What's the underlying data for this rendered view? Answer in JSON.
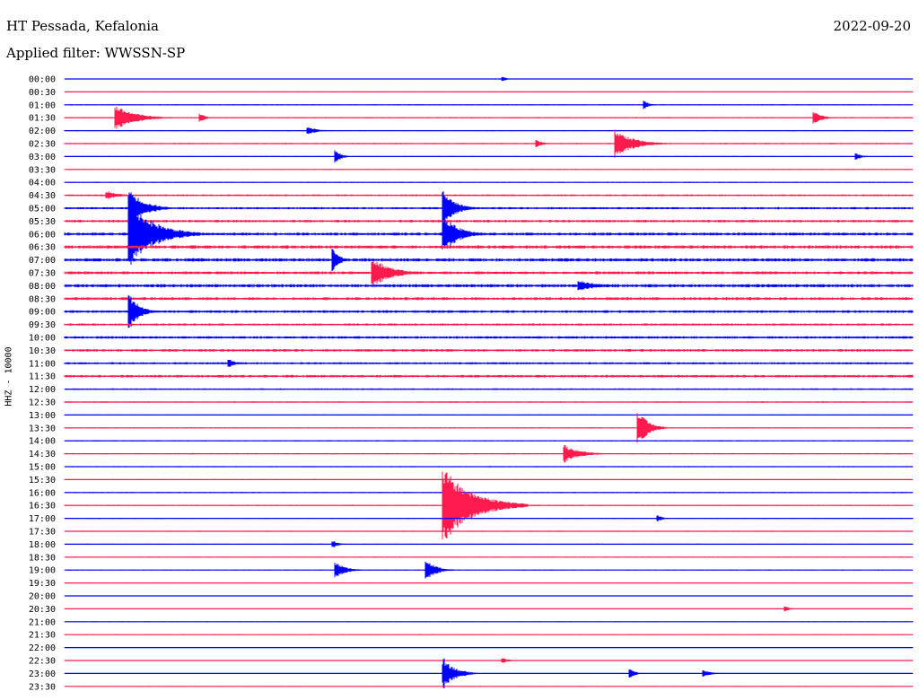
{
  "header": {
    "station": "HT Pessada, Kefalonia",
    "date": "2022-09-20",
    "filter": "Applied filter: WWSSN-SP"
  },
  "channel_label": "HHZ - 10000",
  "colors": {
    "even_row": "#0000ff",
    "odd_row": "#ff1a4d"
  },
  "chart_data": {
    "type": "line",
    "title": "HT Pessada, Kefalonia",
    "subtitle": "Applied filter: WWSSN-SP",
    "ylabel": "HHZ - 10000",
    "xlabel": "",
    "grid": false,
    "x_range_minutes": [
      0,
      30
    ],
    "rows": [
      "00:00",
      "00:30",
      "01:00",
      "01:30",
      "02:00",
      "02:30",
      "03:00",
      "03:30",
      "04:00",
      "04:30",
      "05:00",
      "05:30",
      "06:00",
      "06:30",
      "07:00",
      "07:30",
      "08:00",
      "08:30",
      "09:00",
      "09:30",
      "10:00",
      "10:30",
      "11:00",
      "11:30",
      "12:00",
      "12:30",
      "13:00",
      "13:30",
      "14:00",
      "14:30",
      "15:00",
      "15:30",
      "16:00",
      "16:30",
      "17:00",
      "17:30",
      "18:00",
      "18:30",
      "19:00",
      "19:30",
      "20:00",
      "20:30",
      "21:00",
      "21:30",
      "22:00",
      "22:30",
      "23:00",
      "23:30"
    ],
    "noise_levels": [
      0.4,
      0.5,
      0.6,
      0.7,
      0.6,
      0.7,
      0.6,
      0.5,
      0.6,
      1.0,
      1.2,
      1.4,
      1.6,
      1.8,
      1.8,
      1.6,
      1.8,
      1.6,
      1.4,
      1.2,
      1.4,
      1.4,
      1.2,
      1.4,
      0.9,
      0.7,
      0.6,
      0.6,
      0.7,
      0.7,
      0.6,
      0.6,
      0.7,
      0.7,
      0.6,
      0.6,
      0.6,
      0.5,
      0.5,
      0.5,
      0.4,
      0.4,
      0.4,
      0.4,
      0.4,
      0.4,
      0.4,
      0.4
    ],
    "events": [
      {
        "row": "00:00",
        "minute": 15.5,
        "amplitude": 3,
        "duration_min": 0.4
      },
      {
        "row": "01:00",
        "minute": 20.5,
        "amplitude": 5,
        "duration_min": 0.5
      },
      {
        "row": "01:30",
        "minute": 1.8,
        "amplitude": 14,
        "duration_min": 2.0
      },
      {
        "row": "01:30",
        "minute": 4.8,
        "amplitude": 5,
        "duration_min": 0.6
      },
      {
        "row": "01:30",
        "minute": 26.5,
        "amplitude": 8,
        "duration_min": 0.8
      },
      {
        "row": "02:00",
        "minute": 8.6,
        "amplitude": 5,
        "duration_min": 1.0
      },
      {
        "row": "02:30",
        "minute": 19.5,
        "amplitude": 16,
        "duration_min": 1.8
      },
      {
        "row": "02:30",
        "minute": 16.7,
        "amplitude": 5,
        "duration_min": 0.6
      },
      {
        "row": "03:00",
        "minute": 9.6,
        "amplitude": 7,
        "duration_min": 0.6
      },
      {
        "row": "03:00",
        "minute": 28.0,
        "amplitude": 4,
        "duration_min": 0.6
      },
      {
        "row": "04:30",
        "minute": 1.5,
        "amplitude": 5,
        "duration_min": 1.2
      },
      {
        "row": "05:00",
        "minute": 2.3,
        "amplitude": 22,
        "duration_min": 1.5
      },
      {
        "row": "05:00",
        "minute": 13.4,
        "amplitude": 20,
        "duration_min": 1.2
      },
      {
        "row": "06:00",
        "minute": 2.3,
        "amplitude": 38,
        "duration_min": 2.5
      },
      {
        "row": "06:00",
        "minute": 13.4,
        "amplitude": 22,
        "duration_min": 1.5
      },
      {
        "row": "07:00",
        "minute": 9.5,
        "amplitude": 14,
        "duration_min": 0.7
      },
      {
        "row": "07:30",
        "minute": 10.9,
        "amplitude": 18,
        "duration_min": 1.8
      },
      {
        "row": "08:00",
        "minute": 18.2,
        "amplitude": 6,
        "duration_min": 2.0
      },
      {
        "row": "09:00",
        "minute": 2.3,
        "amplitude": 20,
        "duration_min": 1.0
      },
      {
        "row": "11:00",
        "minute": 5.8,
        "amplitude": 5,
        "duration_min": 0.8
      },
      {
        "row": "13:30",
        "minute": 20.3,
        "amplitude": 20,
        "duration_min": 1.0
      },
      {
        "row": "14:30",
        "minute": 17.7,
        "amplitude": 10,
        "duration_min": 1.5
      },
      {
        "row": "16:00",
        "minute": 13.4,
        "amplitude": 9,
        "duration_min": 0.8
      },
      {
        "row": "16:30",
        "minute": 13.4,
        "amplitude": 42,
        "duration_min": 3.0
      },
      {
        "row": "17:00",
        "minute": 21.0,
        "amplitude": 4,
        "duration_min": 0.5
      },
      {
        "row": "18:00",
        "minute": 9.5,
        "amplitude": 4,
        "duration_min": 0.6
      },
      {
        "row": "19:00",
        "minute": 9.6,
        "amplitude": 9,
        "duration_min": 1.0
      },
      {
        "row": "19:00",
        "minute": 12.8,
        "amplitude": 12,
        "duration_min": 1.0
      },
      {
        "row": "20:30",
        "minute": 25.5,
        "amplitude": 3,
        "duration_min": 0.5
      },
      {
        "row": "22:30",
        "minute": 15.5,
        "amplitude": 3,
        "duration_min": 0.6
      },
      {
        "row": "23:00",
        "minute": 13.4,
        "amplitude": 18,
        "duration_min": 1.2
      },
      {
        "row": "23:00",
        "minute": 20.0,
        "amplitude": 5,
        "duration_min": 0.6
      },
      {
        "row": "23:00",
        "minute": 22.6,
        "amplitude": 4,
        "duration_min": 0.8
      }
    ]
  }
}
